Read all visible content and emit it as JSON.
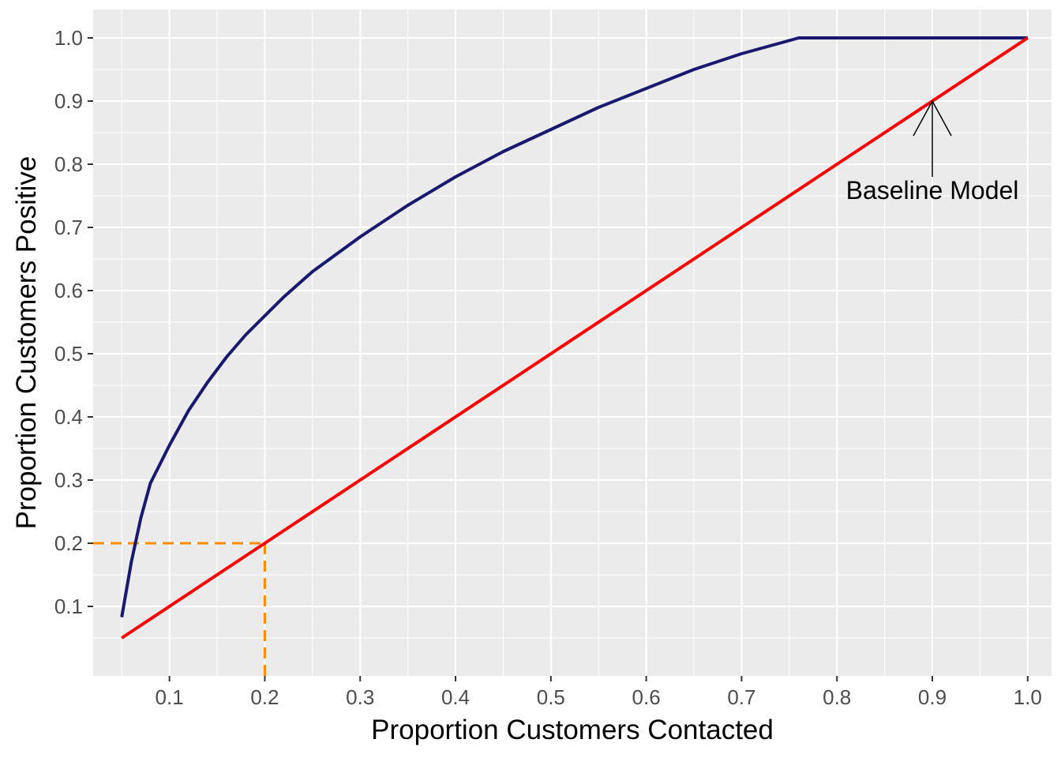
{
  "chart_data": {
    "type": "line",
    "title": "",
    "xlabel": "Proportion Customers Contacted",
    "ylabel": "Proportion Customers Positive",
    "xlim": [
      0.02,
      1.025
    ],
    "ylim": [
      -0.01,
      1.045
    ],
    "x_ticks": [
      "0.1",
      "0.2",
      "0.3",
      "0.4",
      "0.5",
      "0.6",
      "0.7",
      "0.8",
      "0.9",
      "1.0"
    ],
    "y_ticks": [
      "0.1",
      "0.2",
      "0.3",
      "0.4",
      "0.5",
      "0.6",
      "0.7",
      "0.8",
      "0.9",
      "1.0"
    ],
    "grid": true,
    "series": [
      {
        "color": "#191970",
        "style": "solid",
        "x": [
          0.05,
          0.06,
          0.07,
          0.08,
          0.1,
          0.12,
          0.14,
          0.16,
          0.18,
          0.2,
          0.22,
          0.25,
          0.3,
          0.35,
          0.4,
          0.45,
          0.5,
          0.55,
          0.6,
          0.65,
          0.7,
          0.76,
          0.8,
          0.9,
          1.0
        ],
        "y": [
          0.083,
          0.17,
          0.24,
          0.295,
          0.355,
          0.41,
          0.455,
          0.495,
          0.53,
          0.56,
          0.59,
          0.63,
          0.685,
          0.735,
          0.78,
          0.82,
          0.855,
          0.89,
          0.92,
          0.95,
          0.975,
          1.0,
          1.0,
          1.0,
          1.0
        ]
      },
      {
        "color": "#ff0000",
        "style": "solid",
        "x": [
          0.05,
          1.0
        ],
        "y": [
          0.05,
          1.0
        ]
      }
    ],
    "reference_lines": {
      "color": "#ff8c00",
      "style": "dashed",
      "x": 0.2,
      "y": 0.2
    },
    "annotation": {
      "text": "Baseline Model",
      "x": 0.9,
      "y": 0.9
    }
  }
}
